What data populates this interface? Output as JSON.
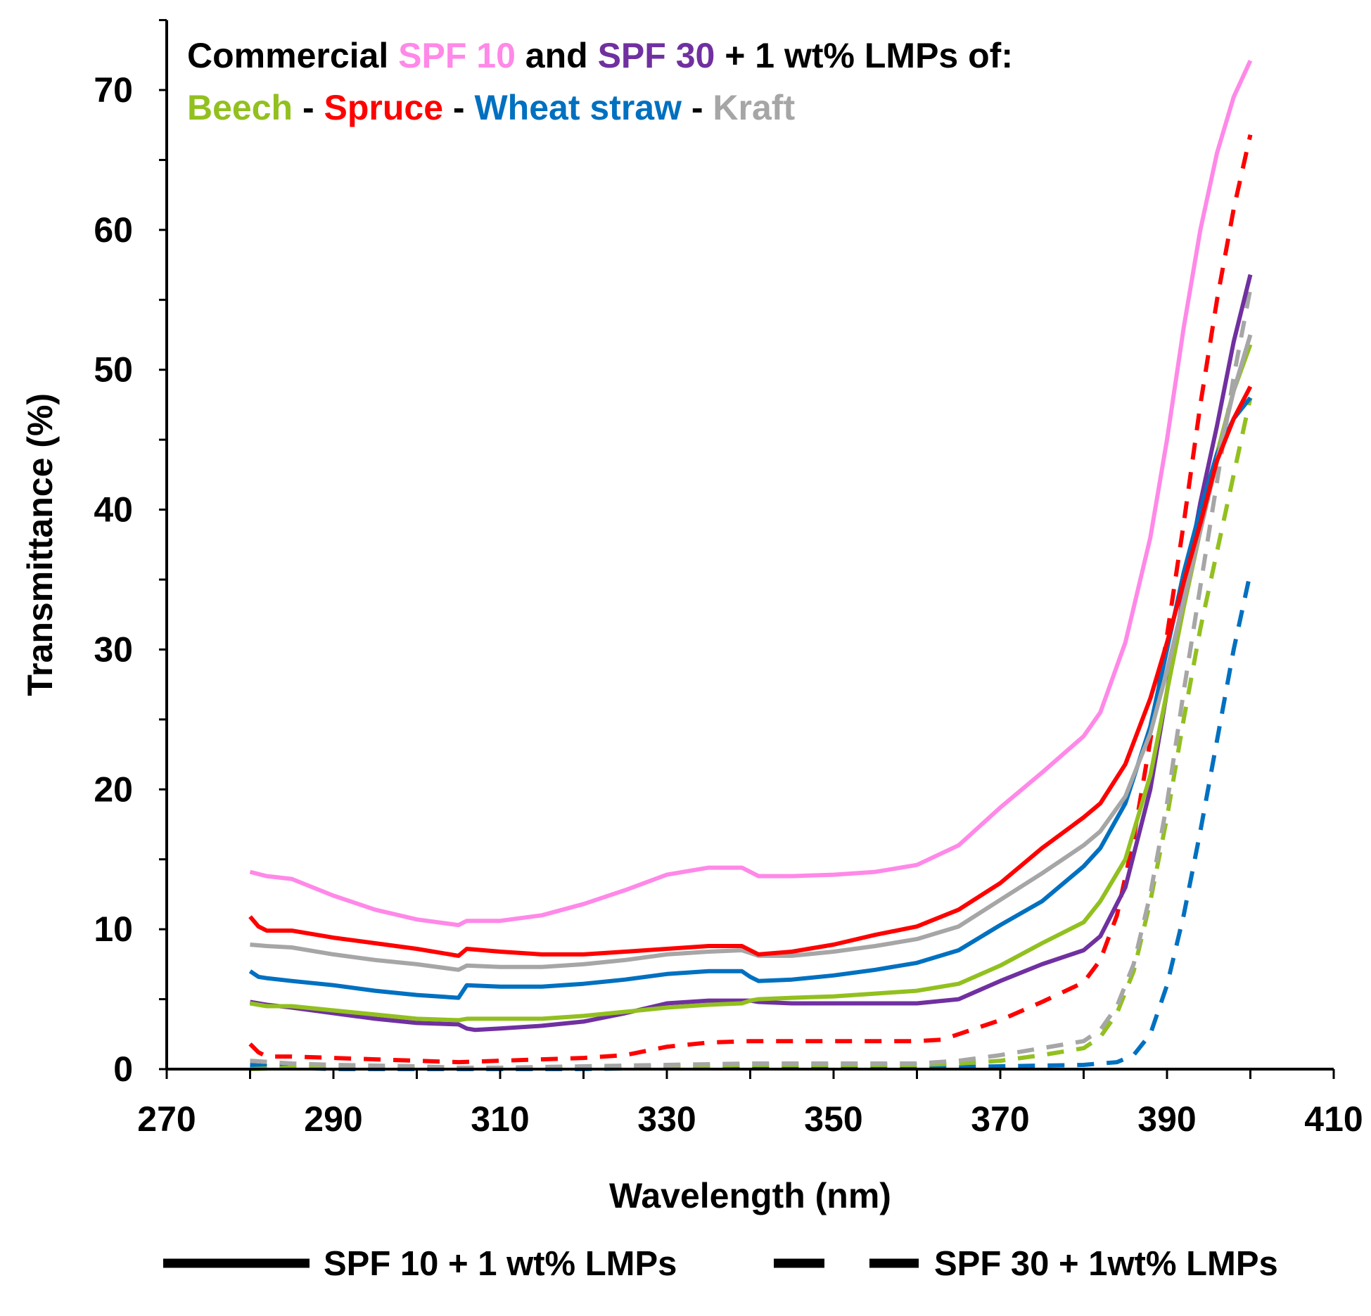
{
  "chart_data": {
    "type": "line",
    "title_line1": [
      {
        "text": "Commercial ",
        "color": "#000000"
      },
      {
        "text": "SPF 10",
        "color": "#ff88e8"
      },
      {
        "text": " and ",
        "color": "#000000"
      },
      {
        "text": "SPF 30",
        "color": "#7030a0"
      },
      {
        "text": " + 1 wt% LMPs of:",
        "color": "#000000"
      }
    ],
    "title_line2": [
      {
        "text": "Beech",
        "color": "#92c01f"
      },
      {
        "text": " - ",
        "color": "#000000"
      },
      {
        "text": "Spruce",
        "color": "#ff0000"
      },
      {
        "text": " - ",
        "color": "#000000"
      },
      {
        "text": "Wheat straw",
        "color": "#0070c0"
      },
      {
        "text": " - ",
        "color": "#000000"
      },
      {
        "text": "Kraft",
        "color": "#a6a6a6"
      }
    ],
    "xlabel": "Wavelength (nm)",
    "ylabel": "Transmittance (%)",
    "xlim": [
      270,
      410
    ],
    "ylim": [
      0,
      75
    ],
    "xticks": [
      270,
      290,
      310,
      330,
      350,
      370,
      390,
      410
    ],
    "yticks": [
      0,
      10,
      20,
      30,
      40,
      50,
      60,
      70
    ],
    "legend": {
      "placement": "bottom",
      "items": [
        {
          "label": "SPF 10 + 1 wt% LMPs",
          "style": "solid"
        },
        {
          "label": "SPF 30 + 1wt% LMPs",
          "style": "dashed"
        }
      ]
    },
    "series": [
      {
        "name": "SPF 10",
        "color": "#ff88e8",
        "style": "solid",
        "x": [
          280,
          282,
          285,
          290,
          295,
          300,
          305,
          306,
          310,
          315,
          320,
          325,
          330,
          335,
          339,
          340,
          341,
          345,
          350,
          355,
          360,
          365,
          370,
          375,
          380,
          382,
          385,
          388,
          390,
          392,
          394,
          396,
          398,
          400
        ],
        "y": [
          14.1,
          13.8,
          13.6,
          12.4,
          11.4,
          10.7,
          10.3,
          10.6,
          10.6,
          11.0,
          11.8,
          12.8,
          13.9,
          14.4,
          14.4,
          14.1,
          13.8,
          13.8,
          13.9,
          14.1,
          14.6,
          16.0,
          18.7,
          21.2,
          23.8,
          25.5,
          30.5,
          38.0,
          45.0,
          53.0,
          60.0,
          65.5,
          69.5,
          72.1
        ]
      },
      {
        "name": "SPF 10 + Spruce",
        "color": "#ff0000",
        "style": "solid",
        "x": [
          280,
          281,
          282,
          285,
          290,
          295,
          300,
          305,
          306,
          310,
          315,
          320,
          325,
          330,
          335,
          339,
          340,
          341,
          345,
          350,
          355,
          360,
          365,
          370,
          375,
          380,
          382,
          385,
          388,
          390,
          392,
          394,
          396,
          398,
          400
        ],
        "y": [
          10.9,
          10.2,
          9.9,
          9.9,
          9.4,
          9.0,
          8.6,
          8.1,
          8.6,
          8.4,
          8.2,
          8.2,
          8.4,
          8.6,
          8.8,
          8.8,
          8.5,
          8.2,
          8.4,
          8.9,
          9.6,
          10.2,
          11.4,
          13.3,
          15.8,
          18.0,
          19.0,
          21.8,
          26.5,
          30.5,
          34.8,
          39.0,
          43.5,
          46.5,
          48.8
        ]
      },
      {
        "name": "SPF 10 + Kraft",
        "color": "#a6a6a6",
        "style": "solid",
        "x": [
          280,
          282,
          285,
          290,
          295,
          300,
          305,
          306,
          310,
          315,
          320,
          325,
          330,
          335,
          339,
          340,
          341,
          345,
          350,
          355,
          360,
          365,
          370,
          375,
          380,
          382,
          385,
          388,
          390,
          392,
          394,
          396,
          398,
          400
        ],
        "y": [
          8.9,
          8.8,
          8.7,
          8.2,
          7.8,
          7.5,
          7.1,
          7.4,
          7.3,
          7.3,
          7.5,
          7.8,
          8.2,
          8.4,
          8.5,
          8.3,
          8.1,
          8.1,
          8.4,
          8.8,
          9.3,
          10.2,
          12.1,
          14.0,
          16.0,
          17.0,
          19.5,
          24.0,
          28.5,
          33.5,
          38.5,
          43.5,
          48.5,
          52.5
        ]
      },
      {
        "name": "SPF 10 + Wheat straw",
        "color": "#0070c0",
        "style": "solid",
        "x": [
          280,
          281,
          282,
          285,
          290,
          295,
          300,
          305,
          306,
          310,
          315,
          320,
          325,
          330,
          335,
          339,
          340,
          341,
          345,
          350,
          355,
          360,
          365,
          370,
          375,
          380,
          382,
          385,
          388,
          390,
          392,
          394,
          396,
          398,
          400
        ],
        "y": [
          7.0,
          6.6,
          6.5,
          6.3,
          6.0,
          5.6,
          5.3,
          5.1,
          6.0,
          5.9,
          5.9,
          6.1,
          6.4,
          6.8,
          7.0,
          7.0,
          6.6,
          6.3,
          6.4,
          6.7,
          7.1,
          7.6,
          8.5,
          10.3,
          12.0,
          14.5,
          15.8,
          19.0,
          24.5,
          30.0,
          35.5,
          40.0,
          44.0,
          46.5,
          48.0
        ]
      },
      {
        "name": "SPF 10 + Beech",
        "color": "#92c01f",
        "style": "solid",
        "x": [
          280,
          282,
          285,
          290,
          295,
          300,
          305,
          306,
          310,
          315,
          320,
          325,
          330,
          335,
          339,
          340,
          341,
          345,
          350,
          355,
          360,
          365,
          370,
          375,
          380,
          382,
          385,
          388,
          390,
          392,
          394,
          396,
          398,
          400
        ],
        "y": [
          4.7,
          4.5,
          4.5,
          4.2,
          3.9,
          3.6,
          3.5,
          3.6,
          3.6,
          3.6,
          3.8,
          4.1,
          4.4,
          4.6,
          4.7,
          4.9,
          5.0,
          5.1,
          5.2,
          5.4,
          5.6,
          6.1,
          7.4,
          9.0,
          10.5,
          12.0,
          15.0,
          21.0,
          27.0,
          33.0,
          38.5,
          44.0,
          48.5,
          51.8
        ]
      },
      {
        "name": "SPF 10 + SPF 30 (purple)",
        "color": "#7030a0",
        "style": "solid",
        "x": [
          280,
          282,
          285,
          290,
          295,
          300,
          305,
          306,
          307,
          310,
          315,
          320,
          325,
          330,
          335,
          339,
          340,
          341,
          345,
          350,
          355,
          360,
          365,
          370,
          375,
          380,
          382,
          385,
          388,
          390,
          392,
          394,
          396,
          398,
          400
        ],
        "y": [
          4.8,
          4.6,
          4.4,
          4.0,
          3.6,
          3.3,
          3.2,
          2.9,
          2.8,
          2.9,
          3.1,
          3.4,
          4.0,
          4.7,
          4.9,
          4.9,
          4.9,
          4.8,
          4.7,
          4.7,
          4.7,
          4.7,
          5.0,
          6.3,
          7.5,
          8.5,
          9.5,
          13.0,
          20.0,
          27.0,
          34.0,
          40.5,
          46.0,
          52.0,
          56.8
        ]
      },
      {
        "name": "SPF 30 + Spruce",
        "color": "#ff0000",
        "style": "dashed",
        "x": [
          280,
          281,
          282,
          285,
          290,
          295,
          300,
          305,
          310,
          315,
          320,
          325,
          330,
          335,
          340,
          345,
          350,
          355,
          360,
          363,
          365,
          370,
          375,
          380,
          382,
          384,
          386,
          388,
          390,
          392,
          394,
          396,
          398,
          400
        ],
        "y": [
          1.8,
          1.2,
          0.9,
          0.9,
          0.8,
          0.7,
          0.6,
          0.5,
          0.6,
          0.7,
          0.8,
          1.0,
          1.6,
          1.9,
          2.0,
          2.0,
          2.0,
          2.0,
          2.0,
          2.1,
          2.5,
          3.5,
          4.8,
          6.2,
          7.8,
          11.0,
          16.5,
          23.5,
          31.0,
          39.0,
          47.5,
          55.0,
          61.5,
          66.8
        ]
      },
      {
        "name": "SPF 30 + Kraft",
        "color": "#a6a6a6",
        "style": "dashed",
        "x": [
          280,
          285,
          290,
          300,
          305,
          310,
          320,
          330,
          340,
          350,
          360,
          365,
          370,
          375,
          380,
          382,
          384,
          386,
          388,
          390,
          392,
          394,
          396,
          398,
          400
        ],
        "y": [
          0.6,
          0.4,
          0.3,
          0.2,
          0.1,
          0.1,
          0.2,
          0.3,
          0.4,
          0.4,
          0.4,
          0.6,
          1.0,
          1.5,
          2.0,
          2.8,
          4.5,
          7.5,
          12.5,
          19.0,
          27.0,
          34.5,
          42.0,
          49.5,
          55.8
        ]
      },
      {
        "name": "SPF 30 + Beech",
        "color": "#92c01f",
        "style": "dashed",
        "x": [
          280,
          285,
          290,
          300,
          310,
          320,
          330,
          340,
          350,
          360,
          365,
          370,
          375,
          380,
          382,
          384,
          386,
          388,
          390,
          392,
          394,
          396,
          398,
          400
        ],
        "y": [
          0.0,
          0.1,
          0.1,
          0.1,
          0.1,
          0.1,
          0.2,
          0.3,
          0.3,
          0.3,
          0.4,
          0.6,
          1.0,
          1.5,
          2.3,
          4.0,
          7.0,
          12.0,
          18.0,
          25.0,
          31.5,
          37.0,
          42.5,
          48.0
        ]
      },
      {
        "name": "SPF 30 + Wheat straw",
        "color": "#0070c0",
        "style": "dashed",
        "x": [
          280,
          285,
          290,
          300,
          310,
          320,
          330,
          340,
          350,
          360,
          370,
          380,
          384,
          386,
          388,
          390,
          392,
          394,
          396,
          398,
          400
        ],
        "y": [
          0.3,
          0.1,
          0.0,
          0.0,
          0.0,
          0.0,
          0.1,
          0.1,
          0.1,
          0.1,
          0.2,
          0.3,
          0.5,
          1.0,
          2.5,
          6.0,
          11.0,
          17.0,
          23.5,
          30.0,
          35.5
        ]
      }
    ]
  }
}
